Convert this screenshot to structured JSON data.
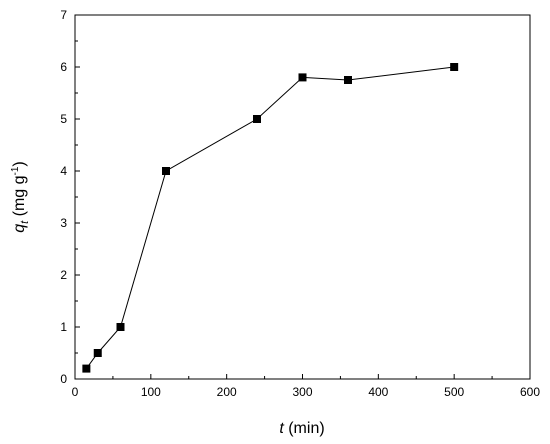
{
  "chart_data": {
    "type": "line",
    "title": "",
    "xlabel": {
      "var": "t",
      "unit": " (min)"
    },
    "ylabel": {
      "var": "q",
      "sub": "t",
      "unit_pre": " (mg g",
      "unit_sup": "-1",
      "unit_post": ")"
    },
    "xlim": [
      0,
      600
    ],
    "ylim": [
      0,
      7
    ],
    "xticks": [
      0,
      100,
      200,
      300,
      400,
      500,
      600
    ],
    "yticks": [
      0,
      1,
      2,
      3,
      4,
      5,
      6,
      7
    ],
    "grid": false,
    "legend": false,
    "marker": "square",
    "series": [
      {
        "color": "#000000",
        "x": [
          15,
          30,
          60,
          120,
          240,
          300,
          360,
          500
        ],
        "y": [
          0.2,
          0.5,
          1.0,
          4.0,
          5.0,
          5.8,
          5.75,
          6.0
        ]
      }
    ]
  }
}
